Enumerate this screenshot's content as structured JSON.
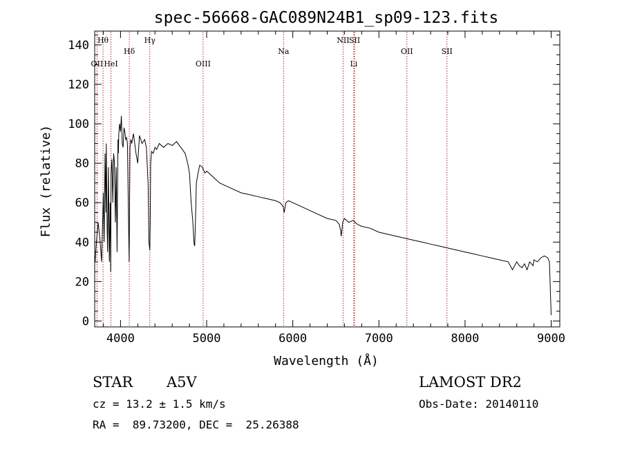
{
  "chart_data": {
    "type": "line",
    "title": "spec-56668-GAC089N24B1_sp09-123.fits",
    "xlabel": "Wavelength (Å)",
    "ylabel": "Flux (relative)",
    "xlim": [
      3700,
      9100
    ],
    "ylim": [
      -3,
      147
    ],
    "xticks": [
      4000,
      5000,
      6000,
      7000,
      8000,
      9000
    ],
    "yticks": [
      0,
      20,
      40,
      60,
      80,
      100,
      120,
      140
    ],
    "grid": false,
    "series": [
      {
        "color": "#000000",
        "x": [
          3705,
          3720,
          3740,
          3760,
          3780,
          3800,
          3810,
          3820,
          3830,
          3835,
          3845,
          3850,
          3860,
          3870,
          3880,
          3885,
          3890,
          3900,
          3910,
          3920,
          3930,
          3940,
          3950,
          3960,
          3970,
          3975,
          3980,
          3990,
          4000,
          4010,
          4020,
          4030,
          4040,
          4050,
          4060,
          4070,
          4080,
          4090,
          4100,
          4105,
          4110,
          4120,
          4130,
          4150,
          4180,
          4200,
          4220,
          4250,
          4280,
          4300,
          4320,
          4330,
          4340,
          4345,
          4350,
          4360,
          4380,
          4400,
          4420,
          4450,
          4500,
          4550,
          4600,
          4650,
          4700,
          4750,
          4780,
          4800,
          4820,
          4840,
          4850,
          4855,
          4861,
          4870,
          4880,
          4900,
          4920,
          4950,
          4980,
          5000,
          5050,
          5100,
          5150,
          5200,
          5250,
          5300,
          5400,
          5500,
          5600,
          5700,
          5800,
          5850,
          5890,
          5900,
          5920,
          5950,
          6000,
          6100,
          6200,
          6300,
          6400,
          6500,
          6540,
          6555,
          6562,
          6570,
          6580,
          6600,
          6650,
          6700,
          6750,
          6800,
          6900,
          7000,
          7100,
          7200,
          7300,
          7400,
          7500,
          7600,
          7700,
          7800,
          7900,
          8000,
          8100,
          8200,
          8300,
          8400,
          8500,
          8550,
          8600,
          8630,
          8662,
          8690,
          8720,
          8750,
          8790,
          8800,
          8840,
          8880,
          8920,
          8960,
          8980,
          9000
        ],
        "y": [
          30,
          40,
          50,
          42,
          30,
          65,
          40,
          85,
          55,
          90,
          45,
          35,
          78,
          30,
          60,
          25,
          75,
          82,
          60,
          85,
          80,
          50,
          78,
          35,
          92,
          85,
          95,
          100,
          96,
          104,
          90,
          88,
          98,
          96,
          92,
          93,
          90,
          60,
          30,
          60,
          88,
          92,
          90,
          95,
          85,
          80,
          94,
          90,
          92,
          88,
          70,
          40,
          36,
          50,
          80,
          86,
          85,
          88,
          87,
          90,
          88,
          90,
          89,
          91,
          88,
          85,
          80,
          75,
          60,
          50,
          42,
          39,
          38,
          50,
          70,
          75,
          79,
          78,
          75,
          76,
          74,
          72,
          70,
          69,
          68,
          67,
          65,
          64,
          63,
          62,
          61,
          60,
          58,
          55,
          60,
          61,
          60,
          58,
          56,
          54,
          52,
          51,
          49,
          46,
          43,
          46,
          50,
          52,
          50,
          51,
          49,
          48,
          47,
          45,
          44,
          43,
          42,
          41,
          40,
          39,
          38,
          37,
          36,
          35,
          34,
          33,
          32,
          31,
          30,
          26,
          30,
          28,
          27,
          29,
          26,
          30,
          28,
          31,
          30,
          32,
          33,
          32,
          30,
          3
        ]
      }
    ],
    "line_labels": [
      {
        "label": "Hθ",
        "x": 3797,
        "row": 1
      },
      {
        "label": "OII",
        "x": 3727,
        "row": 3
      },
      {
        "label": "HeI",
        "x": 3889,
        "row": 3
      },
      {
        "label": "Hδ",
        "x": 4102,
        "row": 2
      },
      {
        "label": "Hγ",
        "x": 4340,
        "row": 1
      },
      {
        "label": "OIII",
        "x": 4959,
        "row": 3
      },
      {
        "label": "Na",
        "x": 5893,
        "row": 2
      },
      {
        "label": "NII",
        "x": 6584,
        "row": 1
      },
      {
        "label": "SII",
        "x": 6717,
        "row": 1
      },
      {
        "label": "Li",
        "x": 6708,
        "row": 3
      },
      {
        "label": "OII",
        "x": 7325,
        "row": 2
      },
      {
        "label": "SII",
        "x": 7790,
        "row": 2
      }
    ],
    "line_color": "#b22222"
  },
  "info": {
    "object_class": "STAR",
    "subclass": "A5V",
    "survey": "LAMOST DR2",
    "redshift": "cz = 13.2 ± 1.5 km/s",
    "obs_date": "Obs-Date: 20140110",
    "coords": "RA =  89.73200, DEC =  25.26388"
  }
}
